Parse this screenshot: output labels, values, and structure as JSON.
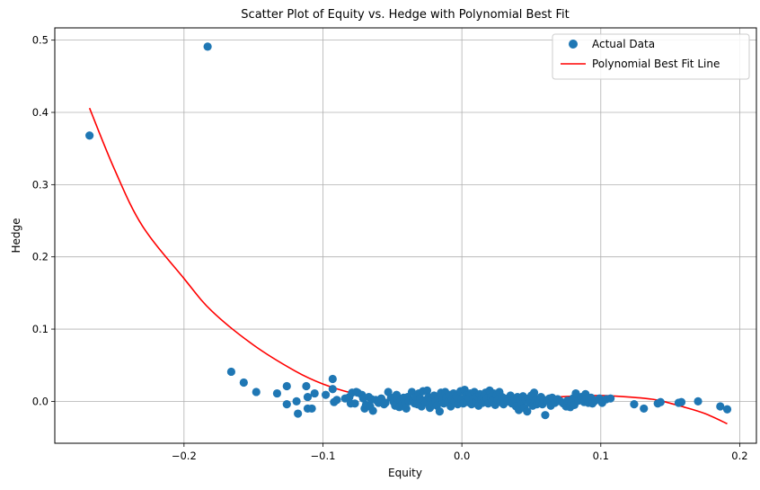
{
  "chart_data": {
    "type": "scatter",
    "title": "Scatter Plot of Equity vs. Hedge with Polynomial Best Fit",
    "xlabel": "Equity",
    "ylabel": "Hedge",
    "xlim": [
      -0.293,
      0.212
    ],
    "ylim": [
      -0.058,
      0.517
    ],
    "grid": true,
    "legend_position": "top-right",
    "x_ticks": [
      -0.2,
      -0.1,
      0.0,
      0.1,
      0.2
    ],
    "x_tick_labels": [
      "−0.2",
      "−0.1",
      "0.0",
      "0.1",
      "0.2"
    ],
    "y_ticks": [
      0.0,
      0.1,
      0.2,
      0.3,
      0.4,
      0.5
    ],
    "y_tick_labels": [
      "0.0",
      "0.1",
      "0.2",
      "0.3",
      "0.4",
      "0.5"
    ],
    "colors": {
      "scatter": "#1f77b4",
      "fit": "#ff0000"
    },
    "series": [
      {
        "name": "Actual Data",
        "kind": "scatter",
        "points": [
          [
            -0.268,
            0.368
          ],
          [
            -0.183,
            0.491
          ],
          [
            -0.166,
            0.041
          ],
          [
            -0.157,
            0.026
          ],
          [
            -0.148,
            0.013
          ],
          [
            -0.133,
            0.011
          ],
          [
            -0.126,
            0.021
          ],
          [
            -0.126,
            -0.004
          ],
          [
            -0.119,
            0.0
          ],
          [
            -0.118,
            -0.017
          ],
          [
            -0.112,
            0.021
          ],
          [
            -0.111,
            0.006
          ],
          [
            -0.111,
            -0.01
          ],
          [
            -0.108,
            -0.01
          ],
          [
            -0.106,
            0.011
          ],
          [
            -0.098,
            0.009
          ],
          [
            -0.093,
            0.031
          ],
          [
            -0.093,
            0.017
          ],
          [
            -0.092,
            -0.001
          ],
          [
            -0.09,
            0.002
          ],
          [
            -0.084,
            0.004
          ],
          [
            -0.081,
            0.006
          ],
          [
            -0.08,
            -0.003
          ],
          [
            -0.079,
            0.012
          ],
          [
            -0.077,
            -0.003
          ],
          [
            -0.076,
            0.013
          ],
          [
            -0.075,
            0.012
          ],
          [
            -0.072,
            0.009
          ],
          [
            -0.071,
            0.004
          ],
          [
            -0.07,
            -0.01
          ],
          [
            -0.069,
            -0.005
          ],
          [
            -0.067,
            0.006
          ],
          [
            -0.066,
            -0.007
          ],
          [
            -0.065,
            0.003
          ],
          [
            -0.064,
            -0.013
          ],
          [
            -0.062,
            0.002
          ],
          [
            -0.06,
            -0.002
          ],
          [
            -0.058,
            0.004
          ],
          [
            -0.056,
            -0.004
          ],
          [
            -0.055,
            -0.002
          ],
          [
            -0.053,
            0.013
          ],
          [
            -0.051,
            0.005
          ],
          [
            -0.049,
            -0.001
          ],
          [
            -0.048,
            -0.006
          ],
          [
            -0.047,
            0.009
          ],
          [
            -0.046,
            0.003
          ],
          [
            -0.045,
            -0.008
          ],
          [
            -0.044,
            0.001
          ],
          [
            -0.043,
            -0.004
          ],
          [
            -0.042,
            0.005
          ],
          [
            -0.041,
            -0.003
          ],
          [
            -0.04,
            -0.01
          ],
          [
            -0.039,
            0.006
          ],
          [
            -0.038,
            0.0
          ],
          [
            -0.036,
            0.013
          ],
          [
            -0.035,
            0.002
          ],
          [
            -0.034,
            -0.003
          ],
          [
            -0.033,
            0.006
          ],
          [
            -0.032,
            -0.004
          ],
          [
            -0.031,
            0.011
          ],
          [
            -0.03,
            0.004
          ],
          [
            -0.029,
            -0.007
          ],
          [
            -0.028,
            0.014
          ],
          [
            -0.027,
            0.001
          ],
          [
            -0.026,
            -0.002
          ],
          [
            -0.025,
            0.015
          ],
          [
            -0.024,
            0.006
          ],
          [
            -0.023,
            -0.009
          ],
          [
            -0.022,
            0.002
          ],
          [
            -0.021,
            -0.004
          ],
          [
            -0.02,
            0.008
          ],
          [
            -0.019,
            0.0
          ],
          [
            -0.018,
            -0.006
          ],
          [
            -0.017,
            0.004
          ],
          [
            -0.016,
            -0.014
          ],
          [
            -0.015,
            0.012
          ],
          [
            -0.014,
            0.002
          ],
          [
            -0.013,
            -0.003
          ],
          [
            -0.012,
            0.013
          ],
          [
            -0.011,
            0.006
          ],
          [
            -0.01,
            -0.001
          ],
          [
            -0.009,
            0.009
          ],
          [
            -0.008,
            -0.007
          ],
          [
            -0.007,
            0.003
          ],
          [
            -0.006,
            0.011
          ],
          [
            -0.005,
            0.0
          ],
          [
            -0.004,
            0.007
          ],
          [
            -0.003,
            -0.004
          ],
          [
            -0.002,
            0.004
          ],
          [
            -0.001,
            0.014
          ],
          [
            0.0,
            0.002
          ],
          [
            0.001,
            -0.003
          ],
          [
            0.002,
            0.016
          ],
          [
            0.003,
            0.008
          ],
          [
            0.004,
            -0.001
          ],
          [
            0.005,
            0.005
          ],
          [
            0.006,
            0.011
          ],
          [
            0.007,
            -0.004
          ],
          [
            0.008,
            0.003
          ],
          [
            0.009,
            0.013
          ],
          [
            0.01,
            0.0
          ],
          [
            0.011,
            0.007
          ],
          [
            0.012,
            -0.006
          ],
          [
            0.013,
            0.01
          ],
          [
            0.014,
            0.002
          ],
          [
            0.015,
            -0.002
          ],
          [
            0.016,
            0.008
          ],
          [
            0.017,
            0.012
          ],
          [
            0.018,
            0.004
          ],
          [
            0.019,
            -0.003
          ],
          [
            0.02,
            0.015
          ],
          [
            0.021,
            0.006
          ],
          [
            0.022,
            0.001
          ],
          [
            0.023,
            0.011
          ],
          [
            0.024,
            -0.005
          ],
          [
            0.025,
            0.009
          ],
          [
            0.026,
            0.002
          ],
          [
            0.027,
            0.013
          ],
          [
            0.028,
            -0.001
          ],
          [
            0.029,
            0.006
          ],
          [
            0.03,
            -0.004
          ],
          [
            0.031,
            0.004
          ],
          [
            0.033,
            0.0
          ],
          [
            0.035,
            0.008
          ],
          [
            0.036,
            -0.003
          ],
          [
            0.038,
            0.003
          ],
          [
            0.039,
            -0.007
          ],
          [
            0.04,
            0.006
          ],
          [
            0.041,
            -0.012
          ],
          [
            0.042,
            0.001
          ],
          [
            0.043,
            -0.004
          ],
          [
            0.044,
            0.007
          ],
          [
            0.045,
            -0.009
          ],
          [
            0.046,
            0.002
          ],
          [
            0.047,
            -0.014
          ],
          [
            0.048,
            0.004
          ],
          [
            0.049,
            -0.002
          ],
          [
            0.05,
            0.008
          ],
          [
            0.051,
            -0.006
          ],
          [
            0.052,
            0.012
          ],
          [
            0.053,
            0.001
          ],
          [
            0.054,
            -0.004
          ],
          [
            0.055,
            0.003
          ],
          [
            0.056,
            -0.001
          ],
          [
            0.057,
            0.006
          ],
          [
            0.058,
            -0.004
          ],
          [
            0.059,
            0.002
          ],
          [
            0.06,
            -0.019
          ],
          [
            0.062,
            0.0
          ],
          [
            0.063,
            0.004
          ],
          [
            0.064,
            -0.006
          ],
          [
            0.065,
            0.005
          ],
          [
            0.067,
            -0.002
          ],
          [
            0.069,
            0.003
          ],
          [
            0.071,
            0.0
          ],
          [
            0.073,
            -0.003
          ],
          [
            0.075,
            -0.007
          ],
          [
            0.076,
            0.001
          ],
          [
            0.078,
            -0.008
          ],
          [
            0.079,
            -0.002
          ],
          [
            0.08,
            0.004
          ],
          [
            0.081,
            -0.005
          ],
          [
            0.082,
            0.011
          ],
          [
            0.084,
            0.001
          ],
          [
            0.086,
            0.006
          ],
          [
            0.088,
            -0.001
          ],
          [
            0.089,
            0.01
          ],
          [
            0.09,
            0.004
          ],
          [
            0.091,
            -0.002
          ],
          [
            0.093,
            0.005
          ],
          [
            0.094,
            -0.003
          ],
          [
            0.096,
            0.001
          ],
          [
            0.099,
            0.004
          ],
          [
            0.101,
            -0.002
          ],
          [
            0.104,
            0.003
          ],
          [
            0.107,
            0.004
          ],
          [
            0.124,
            -0.004
          ],
          [
            0.131,
            -0.01
          ],
          [
            0.141,
            -0.003
          ],
          [
            0.143,
            -0.001
          ],
          [
            0.156,
            -0.002
          ],
          [
            0.158,
            -0.001
          ],
          [
            0.17,
            0.0
          ],
          [
            0.186,
            -0.007
          ],
          [
            0.191,
            -0.011
          ]
        ]
      },
      {
        "name": "Polynomial Best Fit Line",
        "kind": "line",
        "points": [
          [
            -0.268,
            0.406
          ],
          [
            -0.25,
            0.321
          ],
          [
            -0.23,
            0.243
          ],
          [
            -0.2,
            0.17
          ],
          [
            -0.18,
            0.125
          ],
          [
            -0.15,
            0.078
          ],
          [
            -0.12,
            0.042
          ],
          [
            -0.1,
            0.024
          ],
          [
            -0.08,
            0.012
          ],
          [
            -0.05,
            0.001
          ],
          [
            -0.02,
            -0.004
          ],
          [
            0.0,
            -0.002
          ],
          [
            0.03,
            0.001
          ],
          [
            0.06,
            0.005
          ],
          [
            0.08,
            0.007
          ],
          [
            0.1,
            0.008
          ],
          [
            0.12,
            0.006
          ],
          [
            0.14,
            0.002
          ],
          [
            0.16,
            -0.008
          ],
          [
            0.175,
            -0.017
          ],
          [
            0.191,
            -0.031
          ]
        ]
      }
    ]
  }
}
